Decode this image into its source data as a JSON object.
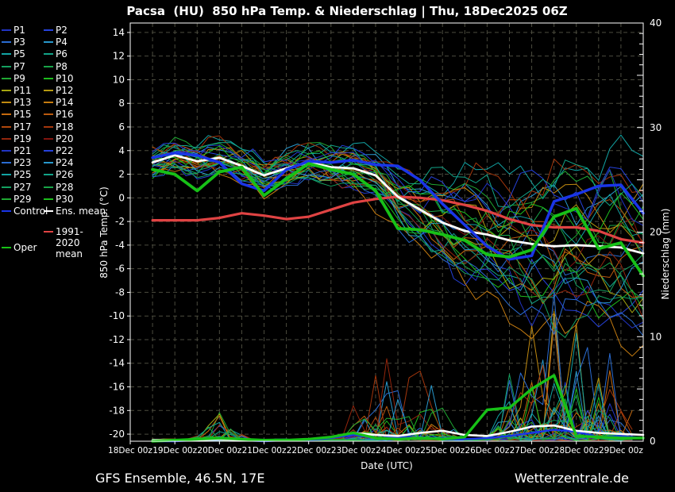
{
  "title": "Pacsa  (HU)  850 hPa Temp. & Niederschlag | Thu, 18Dec2025 06Z",
  "footer": {
    "left": "GFS Ensemble, 46.5N, 17E",
    "right": "Wetterzentrale.de"
  },
  "legend": {
    "members": [
      {
        "label": "P1",
        "color": "#2134c4"
      },
      {
        "label": "P2",
        "color": "#2642dc"
      },
      {
        "label": "P3",
        "color": "#2a6cd2"
      },
      {
        "label": "P4",
        "color": "#2898cc"
      },
      {
        "label": "P5",
        "color": "#12a4a4"
      },
      {
        "label": "P6",
        "color": "#12a488"
      },
      {
        "label": "P7",
        "color": "#14a060"
      },
      {
        "label": "P8",
        "color": "#18a348"
      },
      {
        "label": "P9",
        "color": "#1fa832"
      },
      {
        "label": "P10",
        "color": "#1dbd1d"
      },
      {
        "label": "P11",
        "color": "#a6a610"
      },
      {
        "label": "P12",
        "color": "#b69a10"
      },
      {
        "label": "P13",
        "color": "#c08a10"
      },
      {
        "label": "P14",
        "color": "#c67c10"
      },
      {
        "label": "P15",
        "color": "#c66a0e"
      },
      {
        "label": "P16",
        "color": "#ba5a0e"
      },
      {
        "label": "P17",
        "color": "#b0470c"
      },
      {
        "label": "P18",
        "color": "#a4360c"
      },
      {
        "label": "P19",
        "color": "#92250c"
      },
      {
        "label": "P20",
        "color": "#82140e"
      },
      {
        "label": "P21",
        "color": "#2134c4"
      },
      {
        "label": "P22",
        "color": "#2642dc"
      },
      {
        "label": "P23",
        "color": "#2a6cd2"
      },
      {
        "label": "P24",
        "color": "#2898cc"
      },
      {
        "label": "P25",
        "color": "#12a4a4"
      },
      {
        "label": "P26",
        "color": "#12a488"
      },
      {
        "label": "P27",
        "color": "#14a060"
      },
      {
        "label": "P28",
        "color": "#18a348"
      },
      {
        "label": "P29",
        "color": "#1fa832"
      },
      {
        "label": "P30",
        "color": "#1dbd1d"
      }
    ],
    "specials": [
      {
        "label": "Control",
        "color": "#1a35e8",
        "col": 0,
        "row": 15,
        "wrap": false
      },
      {
        "label": "Ens. mean",
        "color": "#ffffff",
        "col": 1,
        "row": 15,
        "wrap": false
      },
      {
        "label": "1991-2020 mean",
        "color": "#e04343",
        "col": 1,
        "row": 16.7,
        "wrap": true
      },
      {
        "label": "Oper",
        "color": "#17c117",
        "col": 0,
        "row": 18,
        "wrap": false
      }
    ]
  },
  "chart_data": {
    "type": "line",
    "title": "Pacsa  (HU)  850 hPa Temp. & Niederschlag | Thu, 18Dec2025 06Z",
    "xlabel": "Date (UTC)",
    "ylabel_left": "850 hPa Temp. (°C)",
    "ylabel_right": "Niederschlag (mm)",
    "x_ticks": [
      "18Dec 00z",
      "19Dec 00z",
      "20Dec 00z",
      "21Dec 00z",
      "22Dec 00z",
      "23Dec 00z",
      "24Dec 00z",
      "25Dec 00z",
      "26Dec 00z",
      "27Dec 00z",
      "28Dec 00z",
      "29Dec 00z"
    ],
    "x_range_days": [
      18,
      29.5
    ],
    "y_left_ticks": [
      14,
      12,
      10,
      8,
      6,
      4,
      2,
      0,
      -2,
      -4,
      -6,
      -8,
      -10,
      -12,
      -14,
      -16,
      -18,
      -20
    ],
    "y_left_range": [
      -20.6,
      14.8
    ],
    "y_right_ticks": [
      0,
      10,
      20,
      30,
      40
    ],
    "y_right_range": [
      0,
      40
    ],
    "grid": {
      "v_step_days": 0.5,
      "h_step_temp": 2,
      "color": "#4c4c3f"
    },
    "x_days": [
      18.5,
      19.0,
      19.5,
      20.0,
      20.5,
      21.0,
      21.5,
      22.0,
      22.5,
      23.0,
      23.5,
      24.0,
      24.5,
      25.0,
      25.5,
      26.0,
      26.5,
      27.0,
      27.5,
      28.0,
      28.5,
      29.0,
      29.5
    ],
    "series": [
      {
        "name": "1991-2020 mean",
        "axis": "temp",
        "color": "#e04343",
        "width": 3.2,
        "values": [
          -1.9,
          -1.9,
          -1.9,
          -1.7,
          -1.3,
          -1.5,
          -1.8,
          -1.6,
          -1.0,
          -0.4,
          -0.1,
          0.1,
          0.0,
          -0.2,
          -0.6,
          -1.1,
          -1.8,
          -2.3,
          -2.5,
          -2.5,
          -2.8,
          -3.5,
          -3.8
        ]
      },
      {
        "name": "Ens. mean",
        "axis": "temp",
        "color": "#ffffff",
        "width": 2.8,
        "values": [
          3.0,
          3.6,
          3.1,
          3.4,
          2.7,
          1.9,
          2.5,
          3.0,
          2.6,
          2.5,
          1.9,
          0.1,
          -1.0,
          -2.1,
          -2.8,
          -3.1,
          -3.6,
          -3.9,
          -4.1,
          -4.0,
          -4.1,
          -4.2,
          -4.7
        ]
      },
      {
        "name": "Control",
        "axis": "temp",
        "color": "#1a35e8",
        "width": 3.5,
        "values": [
          3.4,
          3.8,
          3.6,
          3.0,
          1.2,
          0.6,
          2.4,
          3.1,
          3.0,
          3.2,
          2.8,
          2.7,
          1.5,
          -0.5,
          -2.3,
          -4.1,
          -5.2,
          -4.9,
          -0.3,
          0.3,
          1.0,
          1.1,
          -1.3
        ]
      },
      {
        "name": "Oper",
        "axis": "temp",
        "color": "#17c117",
        "width": 3.8,
        "values": [
          2.4,
          2.0,
          0.6,
          2.2,
          2.6,
          0.2,
          1.6,
          2.9,
          2.4,
          2.0,
          0.6,
          -2.6,
          -2.7,
          -3.1,
          -3.6,
          -4.8,
          -5.0,
          -4.4,
          -1.6,
          -0.9,
          -4.3,
          -3.8,
          -6.6
        ]
      },
      {
        "name": "Control precip",
        "axis": "precip",
        "color": "#1a35e8",
        "width": 2.4,
        "values": [
          0.0,
          0.0,
          0.1,
          0.2,
          0.1,
          0.0,
          0.1,
          0.1,
          0.3,
          0.6,
          0.3,
          0.4,
          0.3,
          0.2,
          0.2,
          0.3,
          0.5,
          0.8,
          1.1,
          0.9,
          0.4,
          0.5,
          0.3
        ]
      },
      {
        "name": "Ens. mean precip",
        "axis": "precip",
        "color": "#ffffff",
        "width": 2.6,
        "values": [
          0.1,
          0.1,
          0.1,
          0.2,
          0.1,
          0.1,
          0.1,
          0.2,
          0.4,
          0.8,
          0.6,
          0.5,
          0.8,
          1.0,
          0.6,
          0.5,
          0.9,
          1.4,
          1.5,
          1.0,
          0.8,
          0.7,
          0.6
        ]
      },
      {
        "name": "Oper precip",
        "axis": "precip",
        "color": "#17c117",
        "width": 3.4,
        "values": [
          0.0,
          0.1,
          0.2,
          0.3,
          0.2,
          0.1,
          0.1,
          0.2,
          0.4,
          0.8,
          0.3,
          0.2,
          0.3,
          0.2,
          0.4,
          3.0,
          3.2,
          5.0,
          6.3,
          0.5,
          0.4,
          0.3,
          0.3
        ]
      }
    ],
    "ensemble": {
      "count": 30,
      "seed": 20251218,
      "member_step_days": 0.25,
      "temp_spread": {
        "x": [
          18.5,
          23,
          24.5,
          26,
          27.5,
          29.5
        ],
        "halfwidth": [
          1.0,
          1.5,
          3.0,
          5.0,
          6.8,
          7.2
        ]
      },
      "temp_clamp": [
        -13.4,
        5.6
      ],
      "precip_events": [
        {
          "start": 19.4,
          "end": 20.6,
          "amp": 2.2
        },
        {
          "start": 22.6,
          "end": 25.5,
          "amp": 6.5
        },
        {
          "start": 25.9,
          "end": 29.5,
          "amp": 14
        }
      ],
      "precip_clamp": [
        0,
        17.2
      ]
    }
  }
}
